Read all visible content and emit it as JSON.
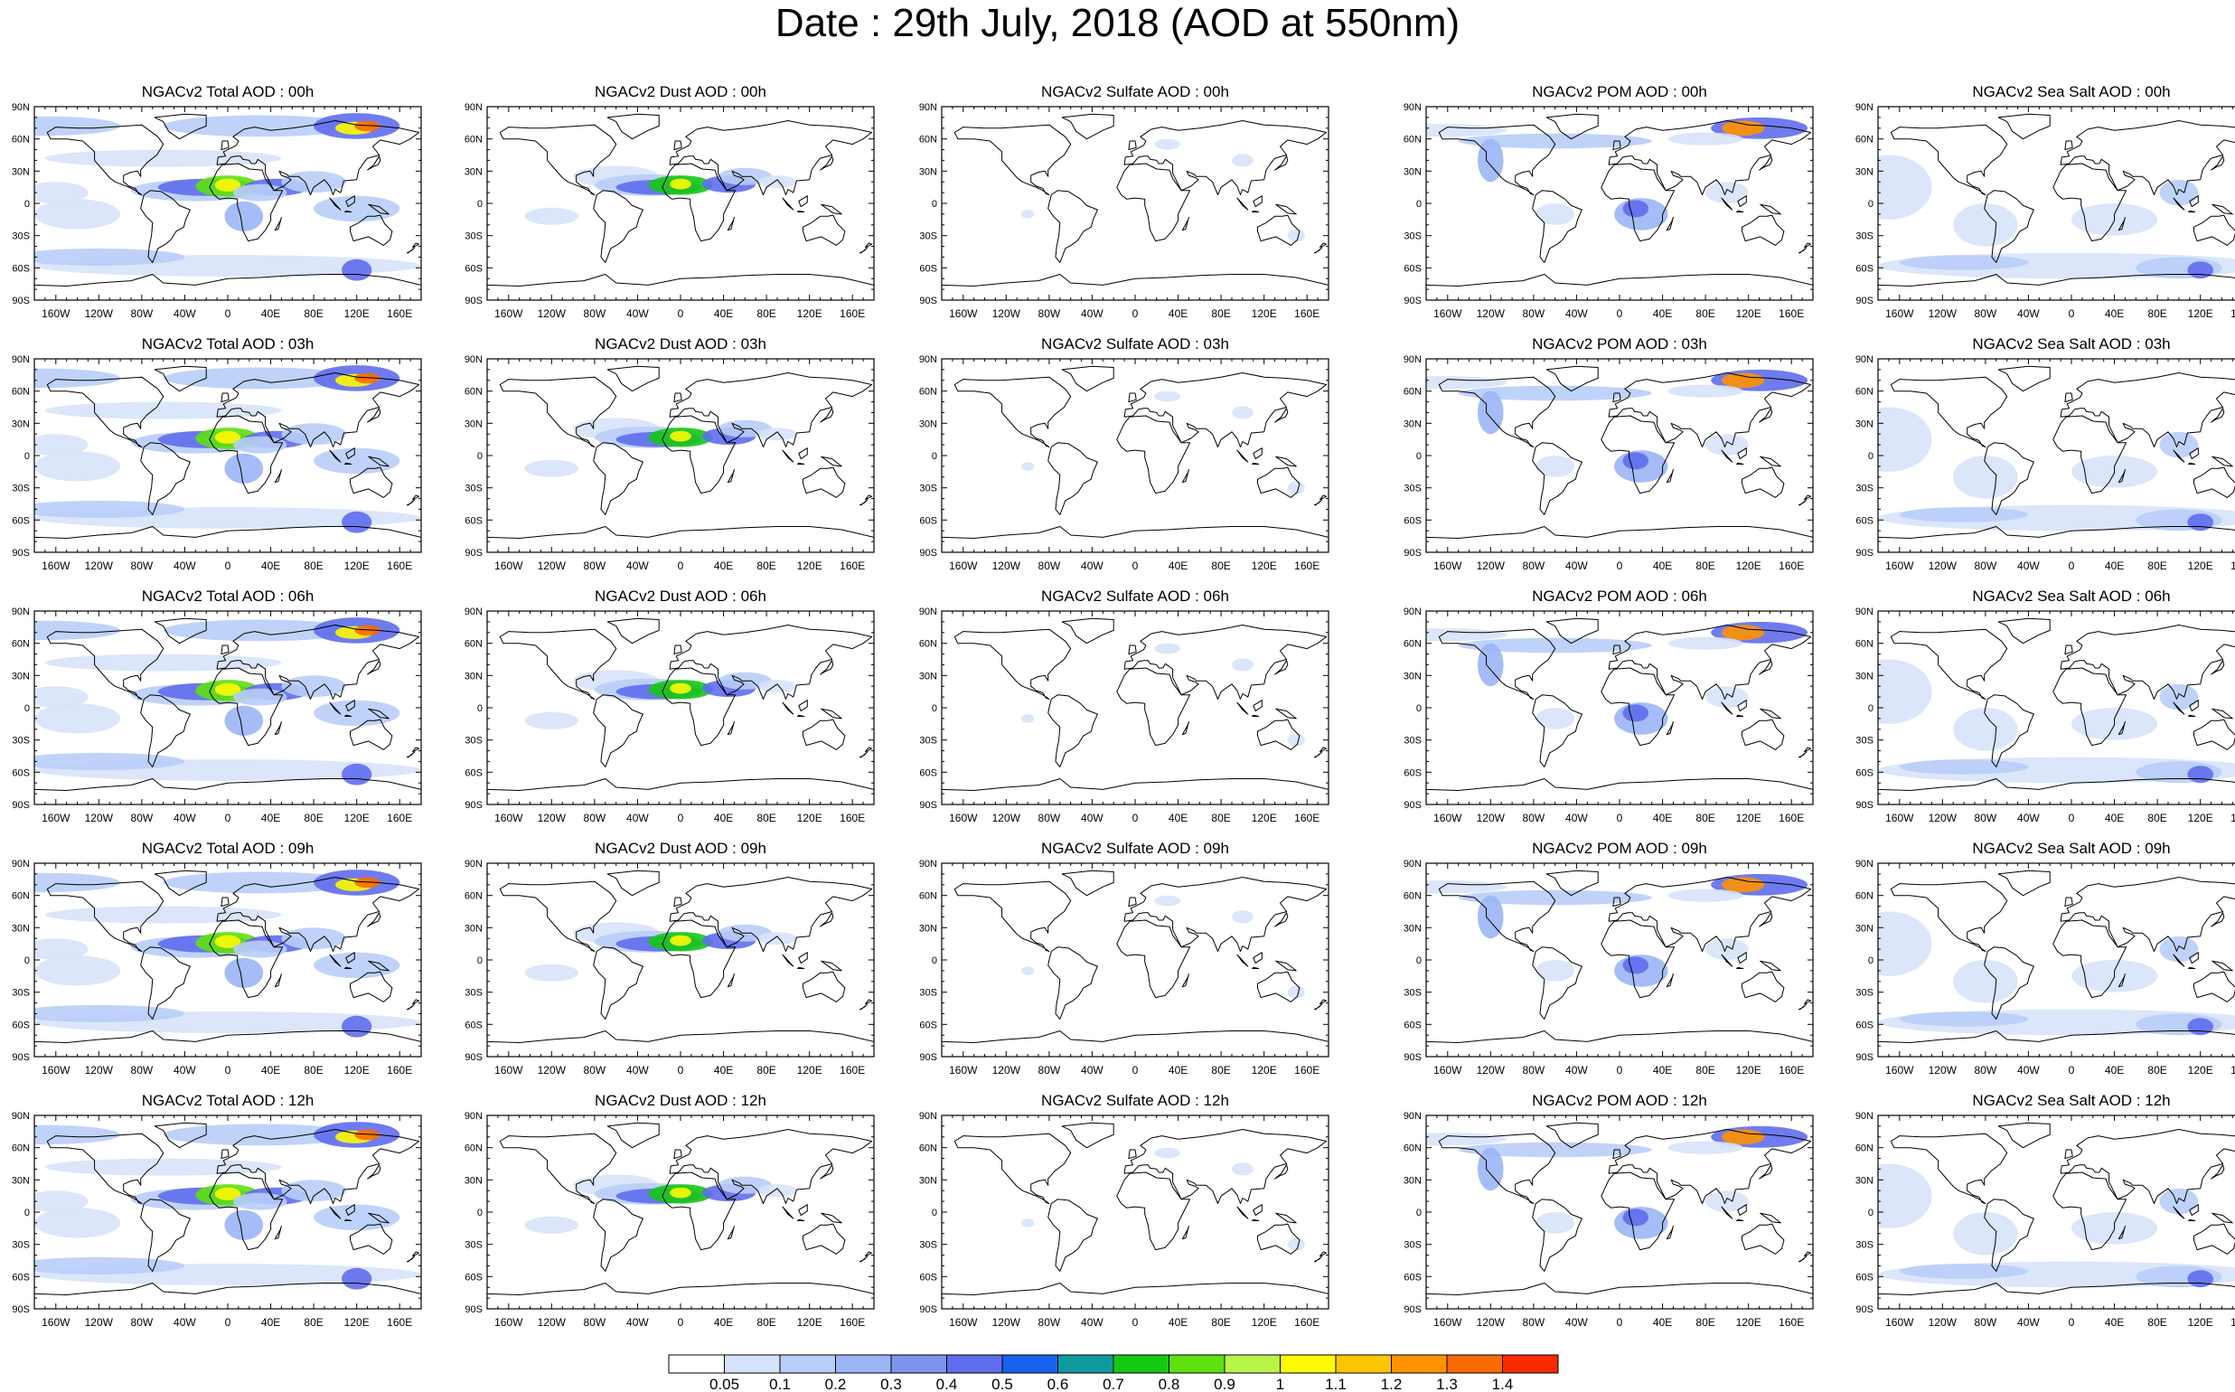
{
  "title": "Date : 29th July, 2018 (AOD at 550nm)",
  "panels": [
    [
      "NGACv2 Total AOD : 00h",
      "NGACv2 Dust AOD : 00h",
      "NGACv2 Sulfate AOD : 00h",
      "NGACv2 POM AOD : 00h",
      "NGACv2 Sea Salt AOD : 00h"
    ],
    [
      "NGACv2 Total AOD : 03h",
      "NGACv2 Dust AOD : 03h",
      "NGACv2 Sulfate AOD : 03h",
      "NGACv2 POM AOD : 03h",
      "NGACv2 Sea Salt AOD : 03h"
    ],
    [
      "NGACv2 Total AOD : 06h",
      "NGACv2 Dust AOD : 06h",
      "NGACv2 Sulfate AOD : 06h",
      "NGACv2 POM AOD : 06h",
      "NGACv2 Sea Salt AOD : 06h"
    ],
    [
      "NGACv2 Total AOD : 09h",
      "NGACv2 Dust AOD : 09h",
      "NGACv2 Sulfate AOD : 09h",
      "NGACv2 POM AOD : 09h",
      "NGACv2 Sea Salt  AOD : 09h"
    ],
    [
      "NGACv2 Total AOD :  12h",
      "NGACv2 Dust AOD : 12h",
      "NGACv2 Sulfate AOD : 12h",
      "NGACv2 POM  AOD : 12h",
      "NGACv2 Sea Salt AOD : 12h"
    ]
  ],
  "lat_labels": [
    "90N",
    "60N",
    "30N",
    "0",
    "30S",
    "60S",
    "90S"
  ],
  "lon_labels": [
    "160W",
    "120W",
    "80W",
    "40W",
    "0",
    "40E",
    "80E",
    "120E",
    "160E"
  ],
  "lon_values": [
    -160,
    -120,
    -80,
    -40,
    0,
    40,
    80,
    120,
    160
  ],
  "lat_values": [
    90,
    60,
    30,
    0,
    -30,
    -60,
    -90
  ],
  "colorbar": {
    "labels": [
      "0.05",
      "0.1",
      "0.2",
      "0.3",
      "0.4",
      "0.5",
      "0.6",
      "0.7",
      "0.8",
      "0.9",
      "1",
      "1.1",
      "1.2",
      "1.3",
      "1.4"
    ],
    "colors": [
      "#ffffff",
      "#d7e3fb",
      "#b8cdf8",
      "#9bb5f5",
      "#7f93ef",
      "#5f6ded",
      "#1663f0",
      "#0f9aa0",
      "#15c815",
      "#5ee00f",
      "#b8f44a",
      "#fdfa03",
      "#fdc402",
      "#fe9200",
      "#fa6a02",
      "#fa2a00"
    ]
  }
}
